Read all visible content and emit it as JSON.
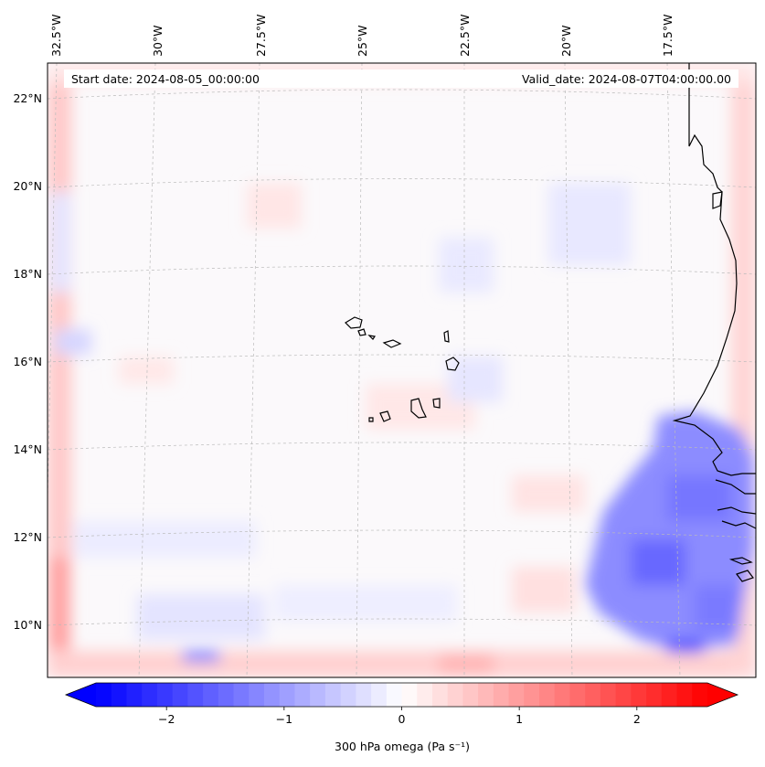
{
  "header": {
    "start_date": "Start date: 2024-08-05_00:00:00",
    "valid_date": "Valid_date: 2024-08-07T04:00:00.00"
  },
  "axes": {
    "lon_labels": [
      "32.5°W",
      "30°W",
      "27.5°W",
      "25°W",
      "22.5°W",
      "20°W",
      "17.5°W"
    ],
    "lat_labels": [
      "22°N",
      "20°N",
      "18°N",
      "16°N",
      "14°N",
      "12°N",
      "10°N"
    ]
  },
  "colorbar": {
    "label": "300 hPa omega (Pa s⁻¹)",
    "ticks": [
      "−2",
      "−1",
      "0",
      "1",
      "2"
    ],
    "tick_values": [
      -2,
      -1,
      0,
      1,
      2
    ],
    "range": [
      -2.6,
      2.6
    ],
    "colormap": "bwr",
    "low_color": "#0000ff",
    "mid_color": "#ffffff",
    "high_color": "#ff0000"
  },
  "map": {
    "variable": "300 hPa omega",
    "coastline_color": "#000000",
    "gridline_color": "#bbbbbb"
  }
}
